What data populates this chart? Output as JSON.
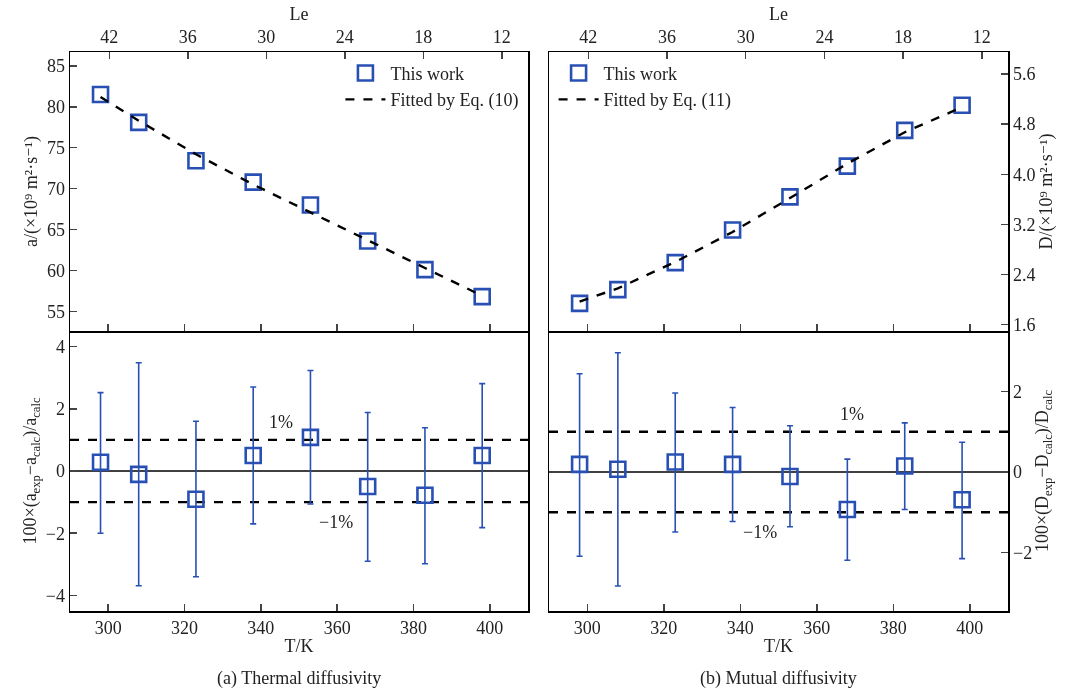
{
  "chart_data": [
    {
      "type": "scatter",
      "ylabel": "a/(×10⁹ m²·s⁻¹)",
      "x2label": "Le",
      "tick_labels": "y",
      "xlim": [
        290,
        410
      ],
      "xticks": [
        300,
        320,
        340,
        360,
        380,
        400
      ],
      "x2lim": [
        45,
        10
      ],
      "x2ticks": [
        42,
        36,
        30,
        24,
        18,
        12
      ],
      "ylim": [
        52.6,
        86.7
      ],
      "yticks": [
        55,
        60,
        65,
        70,
        75,
        80,
        85
      ],
      "legend": "top right",
      "x": [
        298,
        308,
        323,
        338,
        353,
        368,
        383,
        398
      ],
      "series": [
        {
          "name": "This work",
          "type": "scatter",
          "marker": "square",
          "color": "#2850b4",
          "values": [
            81.5,
            78.1,
            73.4,
            70.8,
            68.0,
            63.6,
            60.1,
            56.8
          ]
        },
        {
          "name": "Fitted by Eq. (10)",
          "type": "line",
          "line_style": "dashed",
          "color": "#000000",
          "values": [
            81.2,
            78.3,
            74.2,
            70.5,
            67.1,
            63.7,
            60.3,
            56.9
          ]
        }
      ]
    },
    {
      "type": "scatter",
      "y2label": "D/(×10⁹ m²·s⁻¹)",
      "x2label": "Le",
      "tick_labels": "y",
      "xlim": [
        290,
        410
      ],
      "xticks": [
        300,
        320,
        340,
        360,
        380,
        400
      ],
      "x2lim": [
        45,
        10
      ],
      "x2ticks": [
        42,
        36,
        30,
        24,
        18,
        12
      ],
      "y2lim": [
        1.5,
        5.95
      ],
      "y2ticks": [
        1.6,
        2.4,
        3.2,
        {
          "value": 4,
          "label": "4.0"
        },
        4.8,
        5.6
      ],
      "legend": "top left",
      "x": [
        298,
        308,
        323,
        338,
        353,
        368,
        383,
        398
      ],
      "series": [
        {
          "name": "This work",
          "type": "scatter",
          "axis": "y2",
          "marker": "square",
          "color": "#2850b4",
          "values": [
            1.94,
            2.16,
            2.59,
            3.11,
            3.64,
            4.13,
            4.7,
            5.1
          ]
        },
        {
          "name": "Fitted by Eq. (11)",
          "type": "line",
          "axis": "y2",
          "line_style": "dashed",
          "color": "#000000",
          "values": [
            1.97,
            2.18,
            2.6,
            3.08,
            3.62,
            4.17,
            4.67,
            5.07
          ]
        }
      ]
    },
    {
      "type": "scatter",
      "xlabel": "T/K",
      "ylabel": "100×(a$_{exp}$−a$_{calc}$)/a$_{calc}$",
      "xlim": [
        290,
        410
      ],
      "xticks": [
        300,
        320,
        340,
        360,
        380,
        400
      ],
      "ylim": [
        -4.5,
        4.5
      ],
      "yticks": [
        {
          "value": -4,
          "label": "−4"
        },
        {
          "value": -2,
          "label": "−2"
        },
        0,
        2,
        4
      ],
      "x": [
        298,
        308,
        323,
        338,
        353,
        368,
        383,
        398
      ],
      "series": [
        {
          "type": "scatter",
          "marker": "square",
          "color": "#2850b4",
          "values": [
            0.28,
            -0.11,
            -0.91,
            0.5,
            1.08,
            -0.5,
            -0.78,
            0.5
          ],
          "errors": [
            [
              -2.0,
              2.52
            ],
            [
              -3.69,
              3.48
            ],
            [
              -3.4,
              1.6
            ],
            [
              -1.7,
              2.7
            ],
            [
              -1.06,
              3.23
            ],
            [
              -2.9,
              1.88
            ],
            [
              -2.98,
              1.39
            ],
            [
              -1.82,
              2.81
            ]
          ]
        }
      ],
      "ref_lines": [
        {
          "axis": "y",
          "value": 0,
          "color": "#000000",
          "line_style": "solid"
        },
        {
          "axis": "y",
          "value": 1,
          "color": "#000000",
          "line_style": "dashed",
          "label": "1%"
        },
        {
          "axis": "y",
          "value": -1,
          "color": "#000000",
          "line_style": "dashed",
          "label": "−1%"
        }
      ],
      "annotations": [
        "(a) Thermal diffusivity"
      ]
    },
    {
      "type": "scatter",
      "xlabel": "T/K",
      "y2label": "100×(D$_{exp}$−D$_{calc}$)/D$_{calc}$",
      "xlim": [
        290,
        410
      ],
      "xticks": [
        300,
        320,
        340,
        360,
        380,
        400
      ],
      "y2lim": [
        -3.45,
        3.5
      ],
      "y2ticks": [
        {
          "value": -2,
          "label": "−2"
        },
        0,
        2
      ],
      "x": [
        298,
        308,
        323,
        338,
        353,
        368,
        383,
        398
      ],
      "series": [
        {
          "type": "scatter",
          "axis": "y2",
          "marker": "square",
          "color": "#2850b4",
          "values": [
            0.19,
            0.07,
            0.25,
            0.19,
            -0.11,
            -0.93,
            0.15,
            -0.69
          ],
          "errors": [
            [
              -2.09,
              2.44
            ],
            [
              -2.83,
              2.96
            ],
            [
              -1.49,
              1.96
            ],
            [
              -1.23,
              1.6
            ],
            [
              -1.36,
              1.15
            ],
            [
              -2.19,
              0.32
            ],
            [
              -0.93,
              1.22
            ],
            [
              -2.15,
              0.74
            ]
          ]
        }
      ],
      "ref_lines": [
        {
          "axis": "y2",
          "value": 0,
          "color": "#000000",
          "line_style": "solid"
        },
        {
          "axis": "y2",
          "value": 1,
          "color": "#000000",
          "line_style": "dashed",
          "label": "1%"
        },
        {
          "axis": "y2",
          "value": -1,
          "color": "#000000",
          "line_style": "dashed",
          "label": "−1%"
        }
      ],
      "annotations": [
        "(b) Mutual diffusivity"
      ]
    }
  ]
}
